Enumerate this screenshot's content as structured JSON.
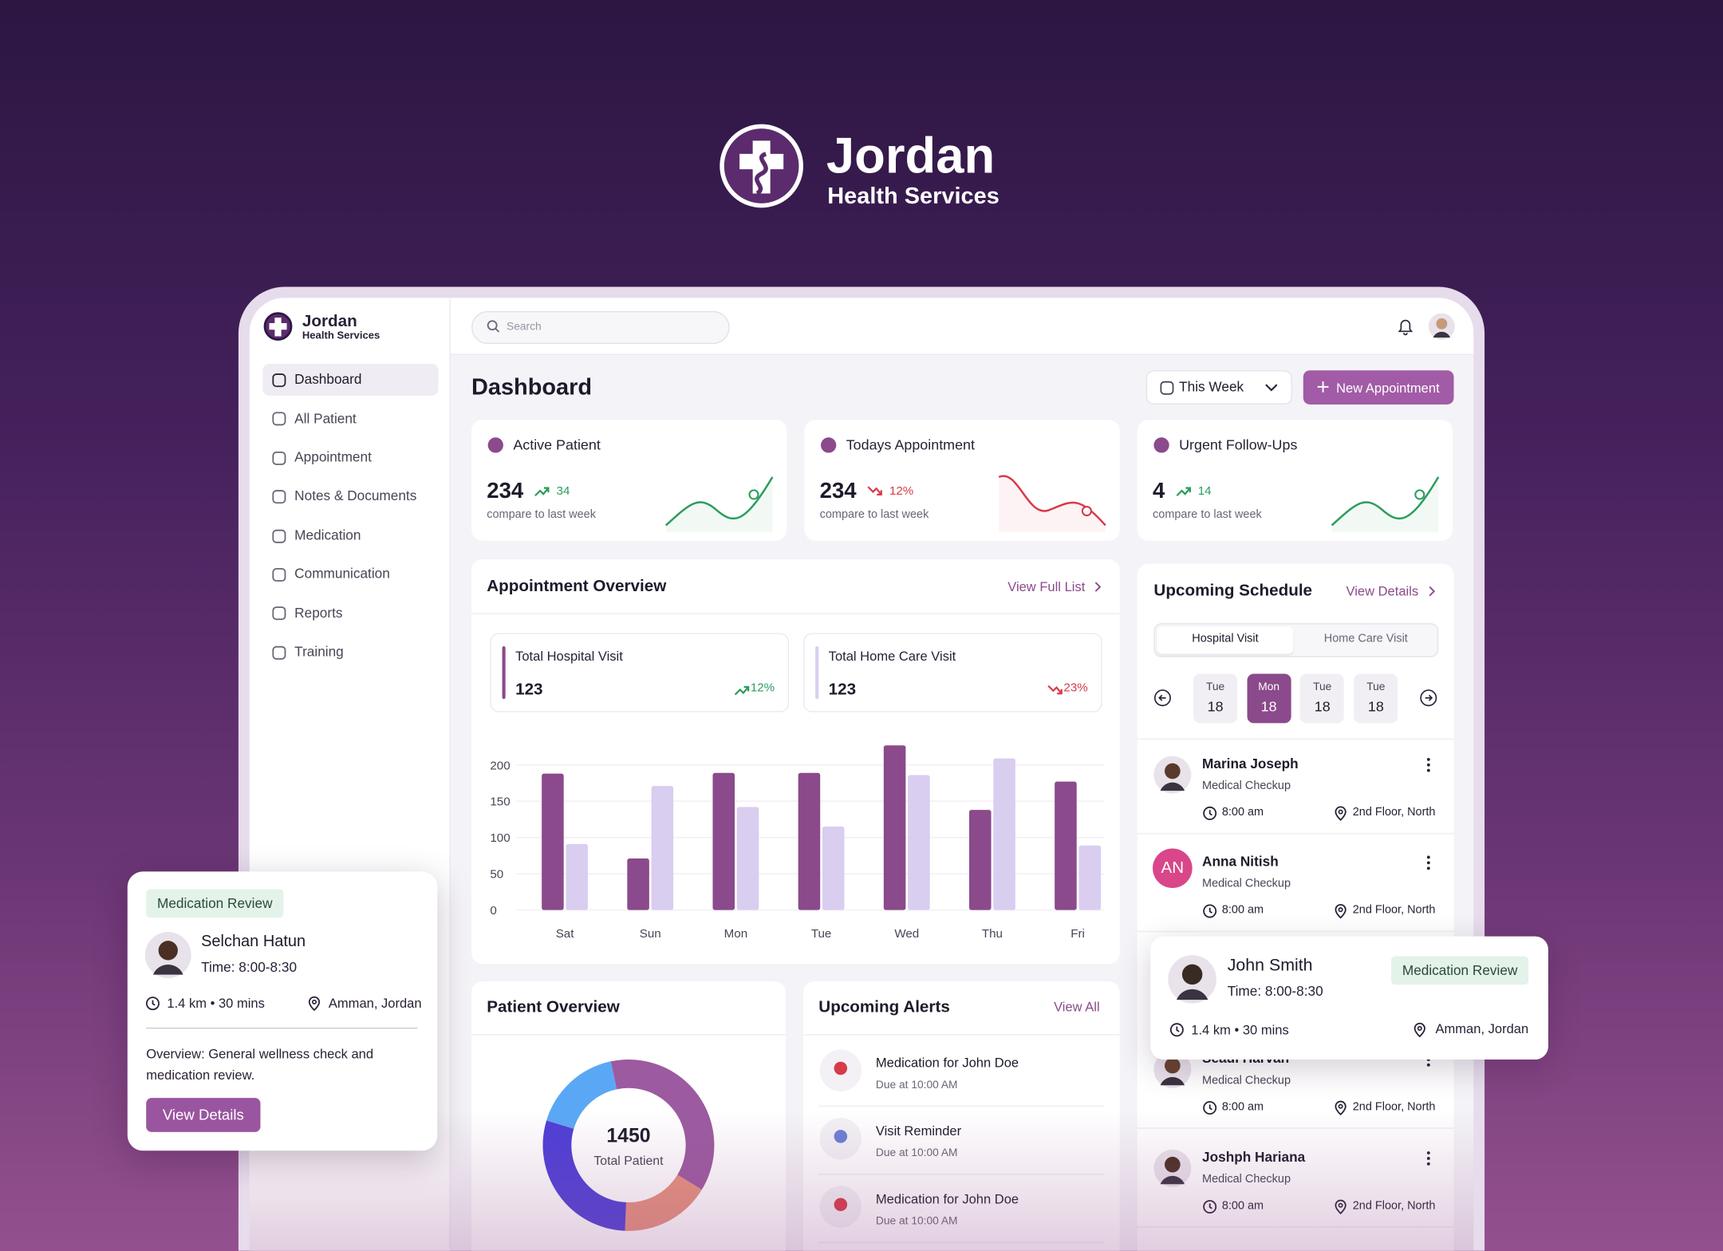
{
  "brand": {
    "name": "Jordan",
    "tagline": "Health Services"
  },
  "sidebar": {
    "name": "Jordan",
    "tagline": "Health Services",
    "nav": [
      "Dashboard",
      "All Patient",
      "Appointment",
      "Notes & Documents",
      "Medication",
      "Communication",
      "Reports",
      "Training"
    ]
  },
  "topbar": {
    "search_placeholder": "Search"
  },
  "header": {
    "title": "Dashboard",
    "period": "This Week",
    "new_button": "New Appointment"
  },
  "stats": [
    {
      "label": "Active Patient",
      "value": "234",
      "change": "34",
      "trend": "up",
      "note": "compare to last week"
    },
    {
      "label": "Todays Appointment",
      "value": "234",
      "change": "12%",
      "trend": "down",
      "note": "compare to last week"
    },
    {
      "label": "Urgent Follow-Ups",
      "value": "4",
      "change": "14",
      "trend": "up",
      "note": "compare to last week"
    }
  ],
  "appointment_overview": {
    "title": "Appointment Overview",
    "link": "View Full List",
    "totals": [
      {
        "label": "Total Hospital Visit",
        "value": "123",
        "change": "12%",
        "trend": "up",
        "color": "#8b4a8b"
      },
      {
        "label": "Total Home Care Visit",
        "value": "123",
        "change": "23%",
        "trend": "down",
        "color": "#d9cdf0"
      }
    ],
    "chart": {
      "type": "bar",
      "categories": [
        "Sat",
        "Sun",
        "Mon",
        "Tue",
        "Wed",
        "Thu",
        "Fri"
      ],
      "series": [
        {
          "color": "#8b4a8b",
          "values": [
            188,
            71,
            189,
            189,
            227,
            138,
            177
          ]
        },
        {
          "color": "#d9cdf0",
          "values": [
            91,
            171,
            142,
            115,
            186,
            209,
            89
          ]
        }
      ],
      "ylim": [
        0,
        230
      ],
      "yticks": [
        0,
        50,
        100,
        150,
        200
      ],
      "grid": true
    }
  },
  "patient_overview": {
    "title": "Patient Overview",
    "chart": {
      "type": "donut",
      "total": 1450,
      "total_label": "Total Patient",
      "values": [
        37,
        17,
        29,
        17
      ],
      "colors": [
        "#9c5aa0",
        "#e6917e",
        "#4f3fd6",
        "#5aa8f5"
      ]
    }
  },
  "alerts": {
    "title": "Upcoming Alerts",
    "link": "View All",
    "items": [
      {
        "title": "Medication for John Doe",
        "due": "Due at 10:00 AM"
      },
      {
        "title": "Visit Reminder",
        "due": "Due at 10:00 AM"
      },
      {
        "title": "Medication for John Doe",
        "due": "Due at 10:00 AM"
      }
    ]
  },
  "schedule": {
    "title": "Upcoming Schedule",
    "link": "View Details",
    "tabs": [
      "Hospital Visit",
      "Home Care Visit"
    ],
    "days": [
      {
        "day": "Tue",
        "date": "18"
      },
      {
        "day": "Mon",
        "date": "18"
      },
      {
        "day": "Tue",
        "date": "18"
      },
      {
        "day": "Tue",
        "date": "18"
      }
    ],
    "active_day": 1,
    "items": [
      {
        "name": "Marina Joseph",
        "type": "Medical Checkup",
        "time": "8:00 am",
        "location": "2nd Floor, North"
      },
      {
        "name": "Anna Nitish",
        "initials": "AN",
        "type": "Medical Checkup",
        "time": "8:00 am",
        "location": "2nd Floor, North"
      },
      {
        "name": "Seaul Harvan",
        "type": "Medical Checkup",
        "time": "8:00 am",
        "location": "2nd Floor, North"
      },
      {
        "name": "Joshph Hariana",
        "type": "Medical Checkup",
        "time": "8:00 am",
        "location": "2nd Floor, North"
      }
    ]
  },
  "review_card_left": {
    "badge": "Medication Review",
    "name": "Selchan Hatun",
    "time": "Time: 8:00-8:30",
    "distance": "1.4 km • 30 mins",
    "location": "Amman, Jordan",
    "overview": "Overview: General wellness check and medication review.",
    "button": "View Details"
  },
  "review_card_right": {
    "badge": "Medication Review",
    "name": "John Smith",
    "time": "Time: 8:00-8:30",
    "distance": "1.4 km • 30 mins",
    "location": "Amman, Jordan"
  }
}
